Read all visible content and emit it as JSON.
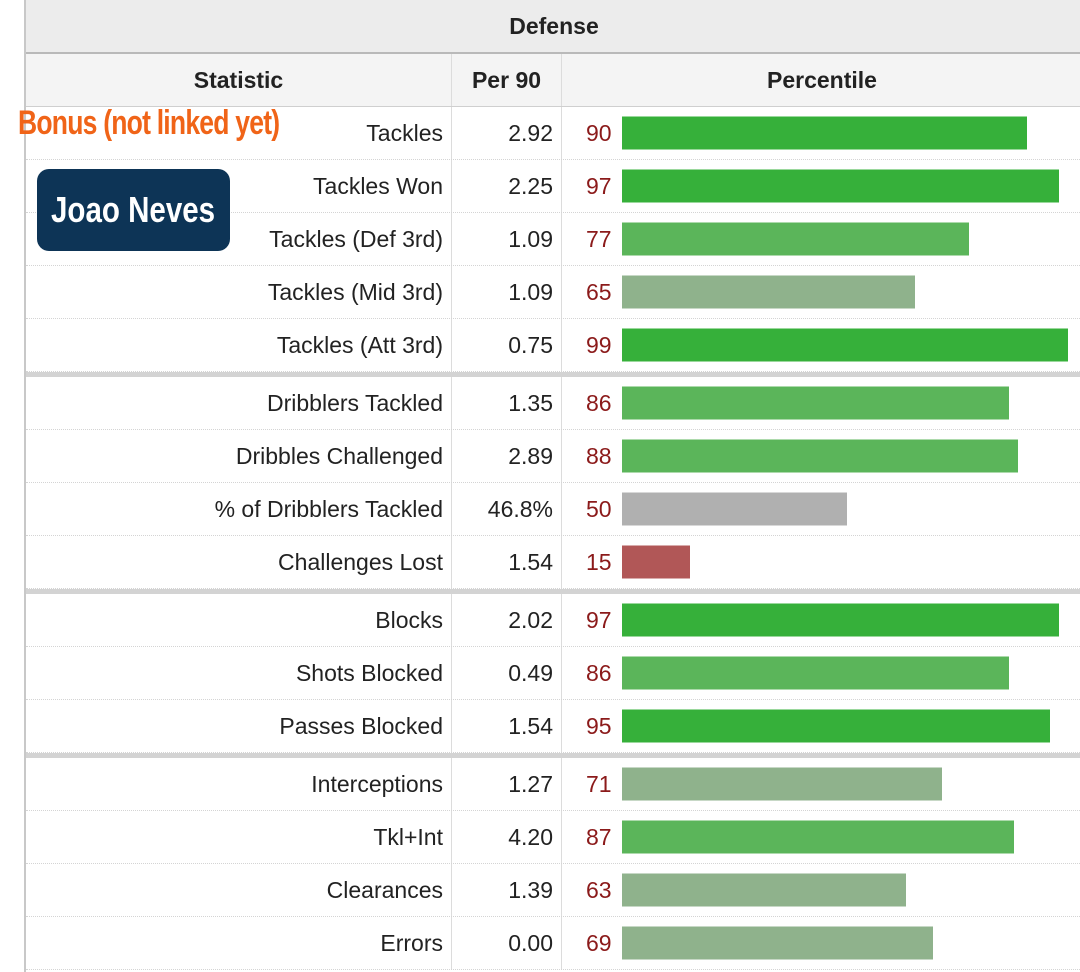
{
  "section_title": "Defense",
  "columns": {
    "statistic": "Statistic",
    "per90": "Per 90",
    "percentile": "Percentile"
  },
  "overlay": {
    "bonus_label": "Bonus (not linked yet)",
    "player_name": "Joao Neves"
  },
  "colors": {
    "high": "#36b03a",
    "mid_high": "#5bb55a",
    "mid": "#8fb28c",
    "neutral": "#b0b0b0",
    "low": "#b15757",
    "percentile_text": "#8b1a1a",
    "accent_bonus": "#f06418",
    "badge_bg": "#0d3456"
  },
  "rows": [
    {
      "stat": "Tackles",
      "per90": "2.92",
      "percentile": "90",
      "group_start": false
    },
    {
      "stat": "Tackles Won",
      "per90": "2.25",
      "percentile": "97",
      "group_start": false
    },
    {
      "stat": "Tackles (Def 3rd)",
      "per90": "1.09",
      "percentile": "77",
      "group_start": false
    },
    {
      "stat": "Tackles (Mid 3rd)",
      "per90": "1.09",
      "percentile": "65",
      "group_start": false
    },
    {
      "stat": "Tackles (Att 3rd)",
      "per90": "0.75",
      "percentile": "99",
      "group_start": false
    },
    {
      "stat": "Dribblers Tackled",
      "per90": "1.35",
      "percentile": "86",
      "group_start": true
    },
    {
      "stat": "Dribbles Challenged",
      "per90": "2.89",
      "percentile": "88",
      "group_start": false
    },
    {
      "stat": "% of Dribblers Tackled",
      "per90": "46.8%",
      "percentile": "50",
      "group_start": false
    },
    {
      "stat": "Challenges Lost",
      "per90": "1.54",
      "percentile": "15",
      "group_start": false
    },
    {
      "stat": "Blocks",
      "per90": "2.02",
      "percentile": "97",
      "group_start": true
    },
    {
      "stat": "Shots Blocked",
      "per90": "0.49",
      "percentile": "86",
      "group_start": false
    },
    {
      "stat": "Passes Blocked",
      "per90": "1.54",
      "percentile": "95",
      "group_start": false
    },
    {
      "stat": "Interceptions",
      "per90": "1.27",
      "percentile": "71",
      "group_start": true
    },
    {
      "stat": "Tkl+Int",
      "per90": "4.20",
      "percentile": "87",
      "group_start": false
    },
    {
      "stat": "Clearances",
      "per90": "1.39",
      "percentile": "63",
      "group_start": false
    },
    {
      "stat": "Errors",
      "per90": "0.00",
      "percentile": "69",
      "group_start": false
    }
  ]
}
